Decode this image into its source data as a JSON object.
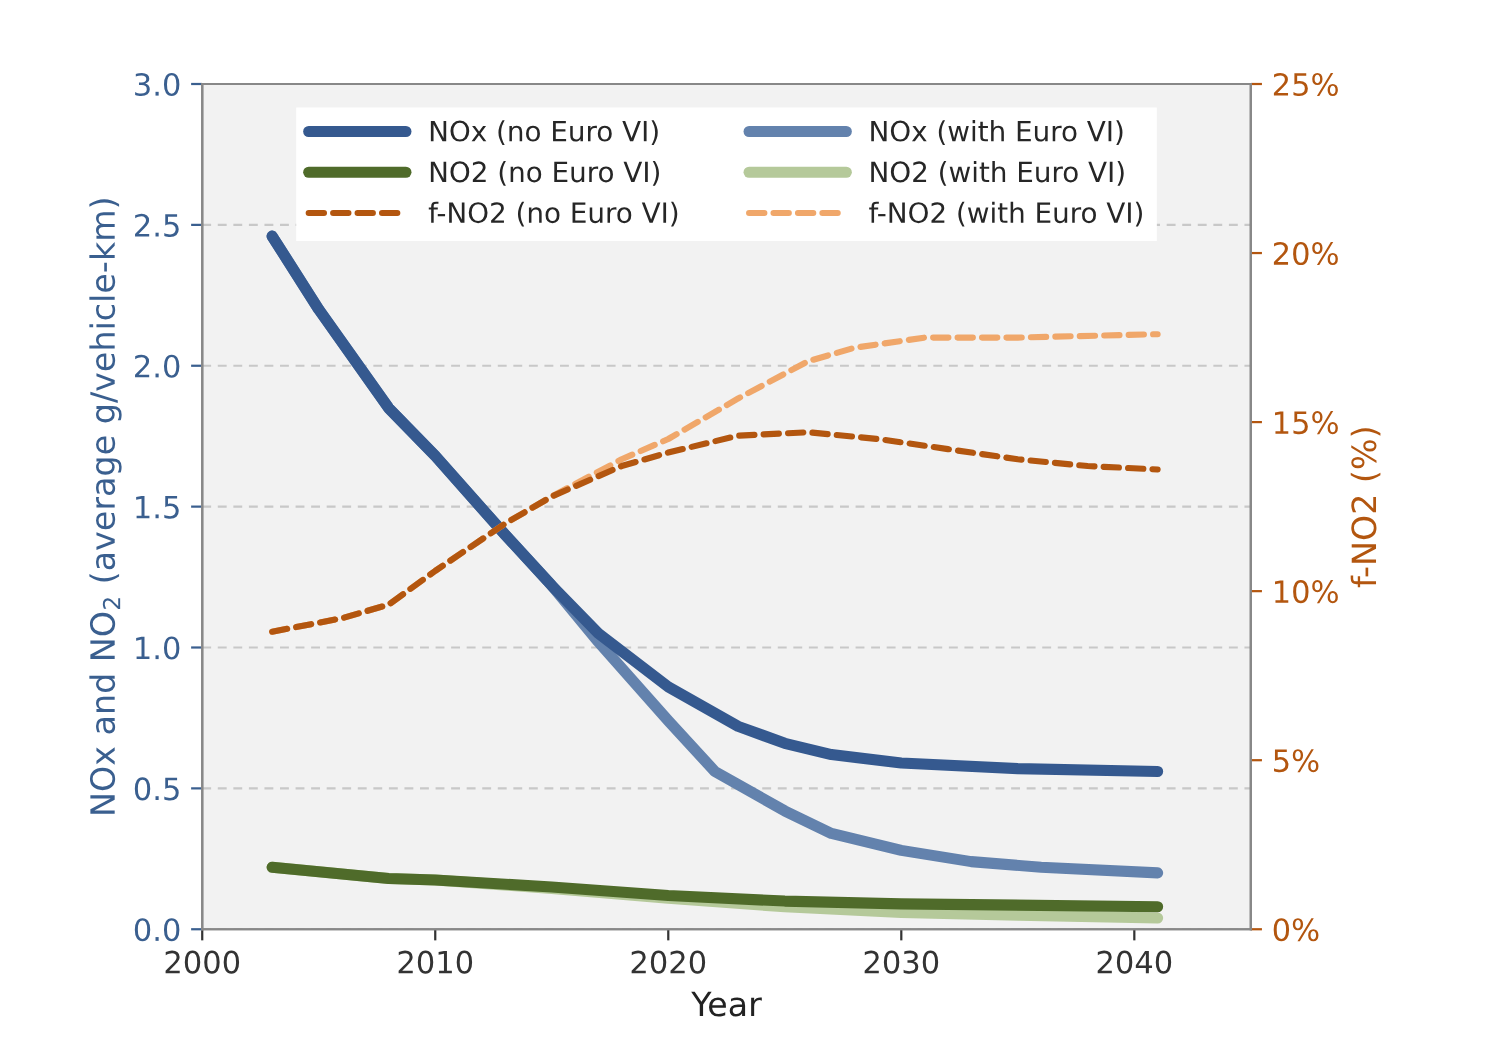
{
  "chart_data": {
    "type": "line",
    "xlabel": "Year",
    "ylabel": "NOx and NO$_{2}$ (average g/vehicle-km)",
    "y2label": "f-NO2 (%)",
    "xlim": [
      2000,
      2045
    ],
    "xticks": [
      2000,
      2010,
      2020,
      2030,
      2040
    ],
    "ylim": [
      0,
      3.0
    ],
    "yticks": [
      {
        "value": 0,
        "label": "0.0"
      },
      {
        "value": 0.5,
        "label": "0.5"
      },
      {
        "value": 1.0,
        "label": "1.0"
      },
      {
        "value": 1.5,
        "label": "1.5"
      },
      {
        "value": 2.0,
        "label": "2.0"
      },
      {
        "value": 2.5,
        "label": "2.5"
      },
      {
        "value": 3.0,
        "label": "3.0"
      }
    ],
    "y2lim": [
      0,
      25
    ],
    "y2ticks": [
      {
        "value": 0,
        "label": "0%"
      },
      {
        "value": 5,
        "label": "5%"
      },
      {
        "value": 10,
        "label": "10%"
      },
      {
        "value": 15,
        "label": "15%"
      },
      {
        "value": 20,
        "label": "20%"
      },
      {
        "value": 25,
        "label": "25%"
      }
    ],
    "grid": "y",
    "legend": "top",
    "marker": "none",
    "series": [
      {
        "name": "NOx (no Euro VI)",
        "color": "#35598f",
        "line_style": "solid",
        "x": [
          2003,
          2005,
          2008,
          2010,
          2013,
          2015,
          2017,
          2020,
          2023,
          2025,
          2027,
          2030,
          2035,
          2041
        ],
        "values": [
          2.46,
          2.2,
          1.85,
          1.68,
          1.4,
          1.22,
          1.05,
          0.86,
          0.72,
          0.66,
          0.62,
          0.59,
          0.57,
          0.56
        ]
      },
      {
        "name": "NO2 (no Euro VI)",
        "color": "#4f6b2a",
        "line_style": "solid",
        "x": [
          2003,
          2008,
          2010,
          2015,
          2020,
          2025,
          2030,
          2041
        ],
        "values": [
          0.22,
          0.18,
          0.175,
          0.15,
          0.12,
          0.1,
          0.09,
          0.08
        ]
      },
      {
        "name": "f-NO2 (no Euro VI)",
        "color": "#b3560f",
        "line_style": "dashed",
        "axis": "y2",
        "x": [
          2003,
          2006,
          2008,
          2010,
          2013,
          2015,
          2018,
          2020,
          2023,
          2026,
          2029,
          2032,
          2035,
          2038,
          2041
        ],
        "values": [
          8.8,
          9.2,
          9.6,
          10.6,
          12.0,
          12.8,
          13.7,
          14.1,
          14.6,
          14.7,
          14.5,
          14.2,
          13.9,
          13.7,
          13.6
        ]
      },
      {
        "name": "NOx (with Euro VI)",
        "color": "#6382ad",
        "line_style": "solid",
        "x": [
          2003,
          2005,
          2008,
          2010,
          2013,
          2015,
          2017,
          2020,
          2022,
          2025,
          2027,
          2030,
          2033,
          2036,
          2041
        ],
        "values": [
          2.46,
          2.2,
          1.85,
          1.68,
          1.4,
          1.22,
          1.02,
          0.74,
          0.56,
          0.42,
          0.34,
          0.28,
          0.24,
          0.22,
          0.2
        ]
      },
      {
        "name": "NO2 (with Euro VI)",
        "color": "#b5c99a",
        "line_style": "solid",
        "x": [
          2003,
          2008,
          2010,
          2015,
          2020,
          2025,
          2030,
          2035,
          2041
        ],
        "values": [
          0.22,
          0.18,
          0.175,
          0.145,
          0.11,
          0.08,
          0.06,
          0.05,
          0.04
        ]
      },
      {
        "name": "f-NO2 (with Euro VI)",
        "color": "#f0a76a",
        "line_style": "dashed",
        "axis": "y2",
        "x": [
          2003,
          2006,
          2008,
          2010,
          2013,
          2015,
          2018,
          2020,
          2023,
          2026,
          2028,
          2031,
          2035,
          2041
        ],
        "values": [
          8.8,
          9.2,
          9.6,
          10.6,
          12.0,
          12.8,
          13.9,
          14.5,
          15.7,
          16.8,
          17.2,
          17.5,
          17.5,
          17.6
        ]
      }
    ]
  }
}
